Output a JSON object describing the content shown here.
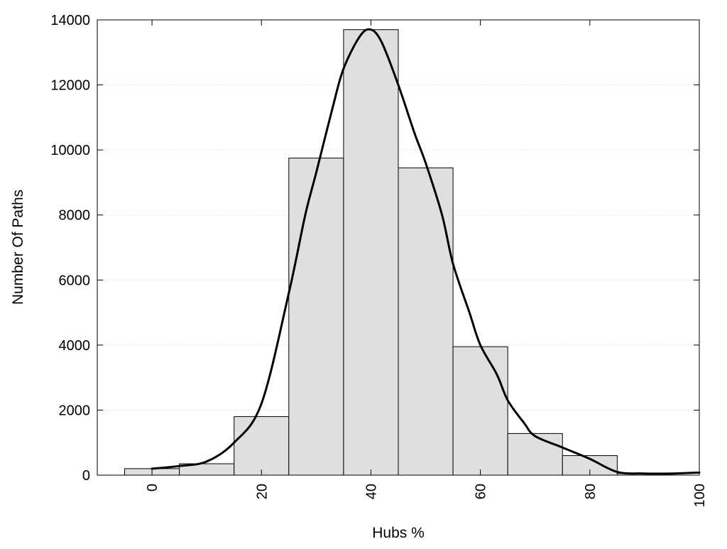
{
  "chart_data": {
    "type": "bar",
    "title": "",
    "xlabel": "Hubs %",
    "ylabel": "Number Of Paths",
    "xlim": [
      -10,
      100
    ],
    "ylim": [
      0,
      14000
    ],
    "x_ticks": [
      "0",
      "20",
      "40",
      "60",
      "80",
      "100"
    ],
    "y_ticks": [
      "0",
      "2000",
      "4000",
      "6000",
      "8000",
      "10000",
      "12000",
      "14000"
    ],
    "grid": "horizontal dotted",
    "bin_width": 10,
    "bins": [
      {
        "center": 0,
        "value": 200
      },
      {
        "center": 10,
        "value": 350
      },
      {
        "center": 20,
        "value": 1800
      },
      {
        "center": 30,
        "value": 9750
      },
      {
        "center": 40,
        "value": 13700
      },
      {
        "center": 50,
        "value": 9450
      },
      {
        "center": 60,
        "value": 3950
      },
      {
        "center": 70,
        "value": 1280
      },
      {
        "center": 80,
        "value": 600
      },
      {
        "center": 90,
        "value": 50
      }
    ],
    "curve": {
      "type": "line",
      "x": [
        0,
        5,
        10,
        15,
        20,
        25,
        28,
        30,
        33,
        35,
        38,
        40,
        42,
        45,
        48,
        50,
        53,
        55,
        58,
        60,
        63,
        65,
        68,
        70,
        75,
        80,
        85,
        90,
        95,
        100
      ],
      "y": [
        200,
        280,
        420,
        1000,
        2200,
        5600,
        8000,
        9300,
        11300,
        12500,
        13500,
        13700,
        13300,
        12000,
        10500,
        9600,
        8000,
        6500,
        5000,
        4000,
        3100,
        2300,
        1600,
        1200,
        850,
        500,
        100,
        50,
        50,
        80
      ]
    },
    "bar_color": "#dfdfdf",
    "curve_color": "#000000"
  }
}
